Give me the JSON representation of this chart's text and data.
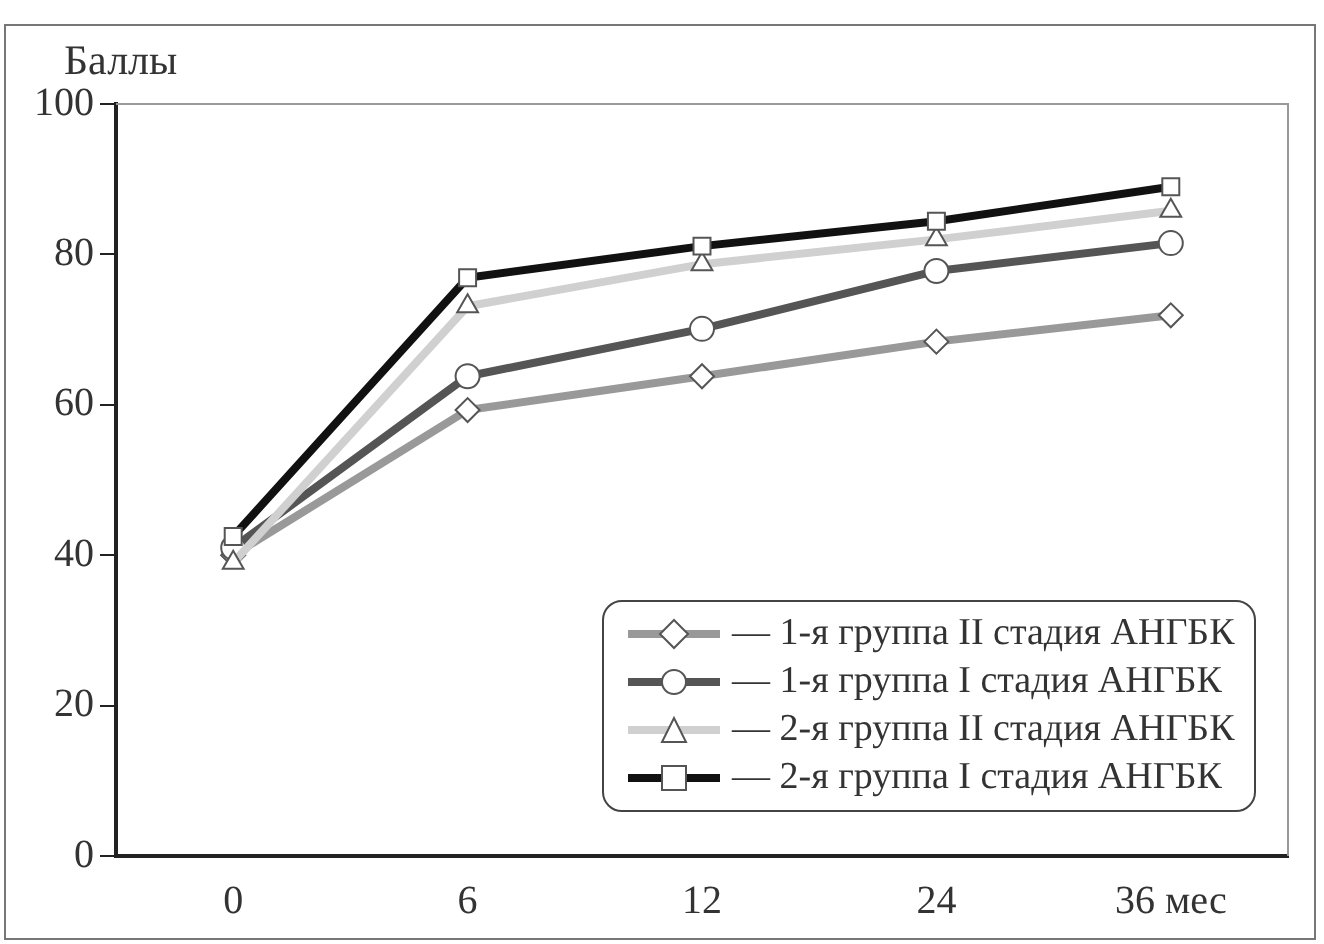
{
  "chart_data": {
    "type": "line",
    "ylabel": "Баллы",
    "categories": [
      "0",
      "6",
      "12",
      "24",
      "36 мес"
    ],
    "ylim": [
      0,
      100
    ],
    "yticks": [
      0,
      20,
      40,
      60,
      80,
      100
    ],
    "grid": false,
    "legend": "bottom right",
    "line_style": "solid",
    "series": [
      {
        "name": "— 1-я группа II стадия АНГБК",
        "color": "#999999",
        "marker": "diamond",
        "values": [
          40,
          59.3,
          63.8,
          68.4,
          71.9
        ]
      },
      {
        "name": "— 1-я группа I стадия АНГБК",
        "color": "#555555",
        "marker": "circle",
        "values": [
          41,
          63.8,
          70.1,
          77.8,
          81.5
        ]
      },
      {
        "name": "— 2-я группа II стадия АНГБК",
        "color": "#d0d0d0",
        "marker": "triangle",
        "values": [
          39,
          73.1,
          78.7,
          82,
          85.8
        ]
      },
      {
        "name": "— 2-я группа I стадия АНГБК",
        "color": "#111111",
        "marker": "square",
        "values": [
          42.5,
          76.9,
          81.1,
          84.4,
          89
        ]
      }
    ]
  }
}
